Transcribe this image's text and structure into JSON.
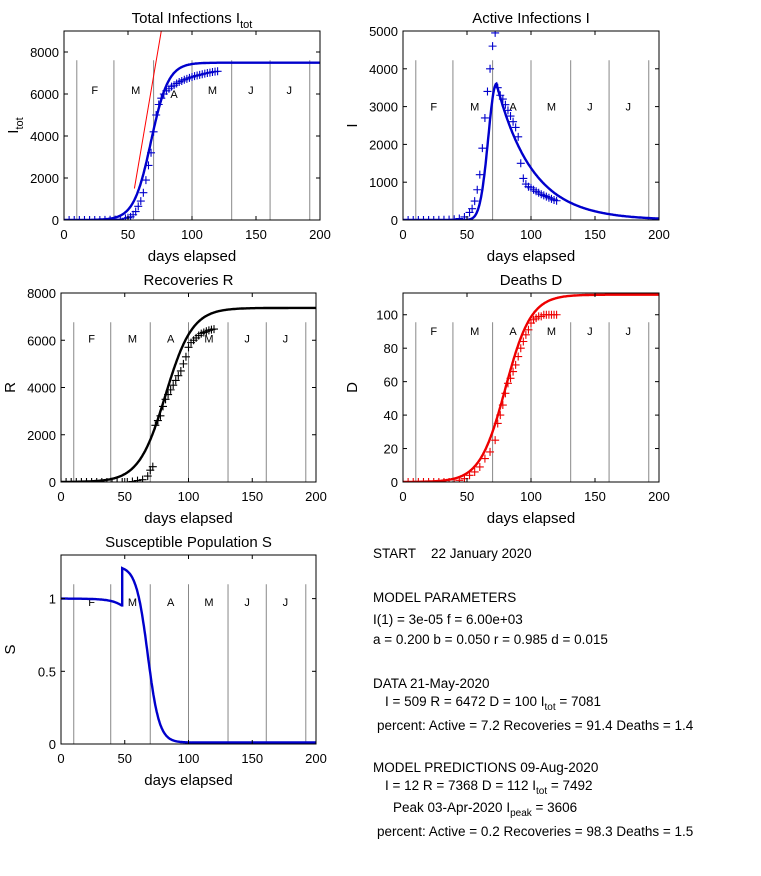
{
  "chart_data": [
    {
      "type": "line",
      "title": "Total Infections I",
      "title_sub": "tot",
      "xlabel": "days elapsed",
      "ylabel": "I",
      "ylabel_sub": "tot",
      "xlim": [
        0,
        200
      ],
      "ylim": [
        0,
        9000
      ],
      "xticks": [
        "0",
        "50",
        "100",
        "150",
        "200"
      ],
      "yticks": [
        "0",
        "2000",
        "4000",
        "6000",
        "8000"
      ],
      "month_lines": [
        10,
        39,
        70,
        100,
        131,
        161,
        192
      ],
      "months": [
        {
          "label": "F",
          "x": 24,
          "y": 6000
        },
        {
          "label": "M",
          "x": 56,
          "y": 6000
        },
        {
          "label": "A",
          "x": 86,
          "y": 5800
        },
        {
          "label": "M",
          "x": 116,
          "y": 6000
        },
        {
          "label": "J",
          "x": 146,
          "y": 6000
        },
        {
          "label": "J",
          "x": 176,
          "y": 6000
        }
      ],
      "model": {
        "kind": "logistic",
        "max": 7492,
        "mid": 68,
        "rate": 0.148,
        "color": "#0000cc"
      },
      "trend_line": {
        "x": [
          55,
          76
        ],
        "y": [
          1500,
          9000
        ],
        "color": "#ff0000"
      },
      "data": {
        "x": [
          0,
          4,
          8,
          12,
          16,
          20,
          24,
          28,
          32,
          36,
          40,
          44,
          48,
          50,
          52,
          54,
          56,
          58,
          60,
          62,
          64,
          66,
          68,
          70,
          72,
          74,
          76,
          78,
          80,
          82,
          84,
          86,
          88,
          90,
          92,
          94,
          96,
          98,
          100,
          102,
          104,
          106,
          108,
          110,
          112,
          114,
          116,
          118,
          120
        ],
        "y": [
          0,
          0,
          0,
          0,
          0,
          0,
          0,
          2,
          5,
          10,
          20,
          40,
          80,
          110,
          150,
          250,
          400,
          650,
          900,
          1300,
          1900,
          2600,
          3200,
          4200,
          5000,
          5500,
          5800,
          6000,
          6150,
          6250,
          6350,
          6420,
          6500,
          6570,
          6620,
          6680,
          6720,
          6770,
          6810,
          6850,
          6880,
          6910,
          6940,
          6970,
          7000,
          7020,
          7050,
          7065,
          7081
        ],
        "color": "#0000cc"
      }
    },
    {
      "type": "line",
      "title": "Active Infections  I",
      "xlabel": "days elapsed",
      "ylabel": "I",
      "xlim": [
        0,
        200
      ],
      "ylim": [
        0,
        5000
      ],
      "xticks": [
        "0",
        "50",
        "100",
        "150",
        "200"
      ],
      "yticks": [
        "0",
        "1000",
        "2000",
        "3000",
        "4000",
        "5000"
      ],
      "month_lines": [
        10,
        39,
        70,
        100,
        131,
        161,
        192
      ],
      "months": [
        {
          "label": "F",
          "x": 24,
          "y": 2900
        },
        {
          "label": "M",
          "x": 56,
          "y": 2900
        },
        {
          "label": "A",
          "x": 86,
          "y": 2900
        },
        {
          "label": "M",
          "x": 116,
          "y": 2900
        },
        {
          "label": "J",
          "x": 146,
          "y": 2900
        },
        {
          "label": "J",
          "x": 176,
          "y": 2900
        }
      ],
      "model": {
        "kind": "peak",
        "peak": 3606,
        "peak_x": 73,
        "rise": 9,
        "decay": 28,
        "color": "#0000cc"
      },
      "data": {
        "x": [
          0,
          4,
          8,
          12,
          16,
          20,
          24,
          28,
          32,
          36,
          40,
          44,
          48,
          52,
          54,
          56,
          58,
          60,
          62,
          64,
          66,
          68,
          70,
          72,
          74,
          76,
          78,
          80,
          82,
          84,
          86,
          88,
          90,
          92,
          94,
          96,
          98,
          100,
          102,
          104,
          106,
          108,
          110,
          112,
          114,
          116,
          118,
          120
        ],
        "y": [
          0,
          0,
          0,
          0,
          0,
          0,
          0,
          2,
          5,
          10,
          20,
          40,
          80,
          200,
          300,
          500,
          800,
          1200,
          1900,
          2700,
          3400,
          4000,
          4600,
          4950,
          3500,
          3300,
          3200,
          3050,
          2900,
          2750,
          2600,
          2450,
          2200,
          1500,
          1100,
          950,
          880,
          850,
          800,
          760,
          720,
          680,
          650,
          620,
          590,
          560,
          530,
          509
        ],
        "color": "#0000cc"
      }
    },
    {
      "type": "line",
      "title": "Recoveries  R",
      "xlabel": "days elapsed",
      "ylabel": "R",
      "xlim": [
        0,
        200
      ],
      "ylim": [
        0,
        8000
      ],
      "xticks": [
        "0",
        "50",
        "100",
        "150",
        "200"
      ],
      "yticks": [
        "0",
        "2000",
        "4000",
        "6000",
        "8000"
      ],
      "month_lines": [
        10,
        39,
        70,
        100,
        131,
        161,
        192
      ],
      "months": [
        {
          "label": "F",
          "x": 24,
          "y": 5900
        },
        {
          "label": "M",
          "x": 56,
          "y": 5900
        },
        {
          "label": "A",
          "x": 86,
          "y": 5900
        },
        {
          "label": "M",
          "x": 116,
          "y": 5900
        },
        {
          "label": "J",
          "x": 146,
          "y": 5900
        },
        {
          "label": "J",
          "x": 176,
          "y": 5900
        }
      ],
      "model": {
        "kind": "logistic",
        "max": 7368,
        "mid": 82,
        "rate": 0.095,
        "color": "#000000"
      },
      "data": {
        "x": [
          0,
          4,
          8,
          12,
          16,
          20,
          24,
          28,
          32,
          36,
          40,
          44,
          48,
          52,
          56,
          60,
          64,
          68,
          70,
          72,
          74,
          76,
          78,
          80,
          82,
          84,
          86,
          88,
          90,
          92,
          94,
          96,
          98,
          100,
          102,
          104,
          106,
          108,
          110,
          112,
          114,
          116,
          118,
          120
        ],
        "y": [
          0,
          0,
          0,
          0,
          0,
          0,
          0,
          0,
          0,
          0,
          0,
          0,
          0,
          0,
          20,
          60,
          100,
          250,
          500,
          650,
          2400,
          2600,
          2800,
          3200,
          3500,
          3700,
          3900,
          4100,
          4300,
          4500,
          4700,
          5000,
          5300,
          5700,
          5900,
          6000,
          6100,
          6200,
          6280,
          6330,
          6380,
          6420,
          6450,
          6472
        ],
        "color": "#000000"
      }
    },
    {
      "type": "line",
      "title": "Deaths  D",
      "xlabel": "days elapsed",
      "ylabel": "D",
      "xlim": [
        0,
        200
      ],
      "ylim": [
        0,
        113
      ],
      "xticks": [
        "0",
        "50",
        "100",
        "150",
        "200"
      ],
      "yticks": [
        "0",
        "20",
        "40",
        "60",
        "80",
        "100"
      ],
      "month_lines": [
        10,
        39,
        70,
        100,
        131,
        161,
        192
      ],
      "months": [
        {
          "label": "F",
          "x": 24,
          "y": 88
        },
        {
          "label": "M",
          "x": 56,
          "y": 88
        },
        {
          "label": "A",
          "x": 86,
          "y": 88
        },
        {
          "label": "M",
          "x": 116,
          "y": 88
        },
        {
          "label": "J",
          "x": 146,
          "y": 88
        },
        {
          "label": "J",
          "x": 176,
          "y": 88
        }
      ],
      "model": {
        "kind": "logistic",
        "max": 112,
        "mid": 80,
        "rate": 0.1,
        "color": "#ee0000"
      },
      "data": {
        "x": [
          0,
          4,
          8,
          12,
          16,
          20,
          24,
          28,
          32,
          36,
          40,
          44,
          48,
          52,
          56,
          60,
          64,
          68,
          72,
          74,
          76,
          78,
          80,
          82,
          84,
          86,
          88,
          90,
          92,
          94,
          96,
          98,
          100,
          102,
          104,
          106,
          108,
          110,
          112,
          114,
          116,
          118,
          120
        ],
        "y": [
          0,
          0,
          0,
          0,
          0,
          0,
          0,
          0,
          0,
          0,
          0,
          1,
          2,
          4,
          6,
          9,
          14,
          18,
          25,
          35,
          40,
          46,
          53,
          59,
          62,
          66,
          70,
          75,
          80,
          84,
          88,
          91,
          95,
          97,
          98,
          99,
          99,
          100,
          100,
          100,
          100,
          100,
          100
        ],
        "color": "#ee0000"
      }
    },
    {
      "type": "line",
      "title": "Susceptible Population S",
      "xlabel": "days elapsed",
      "ylabel": "S",
      "xlim": [
        0,
        200
      ],
      "ylim": [
        0,
        1.3
      ],
      "xticks": [
        "0",
        "50",
        "100",
        "150",
        "200"
      ],
      "yticks": [
        "0",
        "0.5",
        "1"
      ],
      "month_lines": [
        10,
        39,
        70,
        100,
        131,
        161,
        192
      ],
      "months": [
        {
          "label": "F",
          "x": 24,
          "y": 0.95
        },
        {
          "label": "M",
          "x": 56,
          "y": 0.95
        },
        {
          "label": "A",
          "x": 86,
          "y": 0.95
        },
        {
          "label": "M",
          "x": 116,
          "y": 0.95
        },
        {
          "label": "J",
          "x": 146,
          "y": 0.95
        },
        {
          "label": "J",
          "x": 176,
          "y": 0.95
        }
      ],
      "model": {
        "kind": "susceptible",
        "start": 1.0,
        "jump_x": 48,
        "jump_to": 1.2,
        "mid": 68,
        "rate": 0.22,
        "floor": 0.01,
        "color": "#0000cc"
      }
    }
  ],
  "info": {
    "start_label": "START",
    "start_date": "22 January 2020",
    "params_heading": "MODEL PARAMETERS",
    "params_line1": "I(1) = 3e-05   f = 6.00e+03",
    "params_line2": "a = 0.200   b = 0.050    r = 0.985   d = 0.015",
    "data_heading": "DATA 21-May-2020",
    "data_line": "I =   509    R =  6472    D =   100    I",
    "data_sub": "tot",
    "data_itot": " =  7081",
    "data_percent": "percent: Active = 7.2  Recoveries = 91.4    Deaths = 1.4",
    "pred_heading": "MODEL PREDICTIONS  09-Aug-2020",
    "pred_line": "I =    12    R =  7368    D =   112    I",
    "pred_sub": "tot",
    "pred_itot": " =  7492",
    "peak_label": "Peak   03-Apr-2020  I",
    "peak_sub": "peak",
    "peak_value": " =  3606",
    "pred_percent": "percent: Active = 0.2  Recoveries = 98.3    Deaths = 1.5"
  }
}
